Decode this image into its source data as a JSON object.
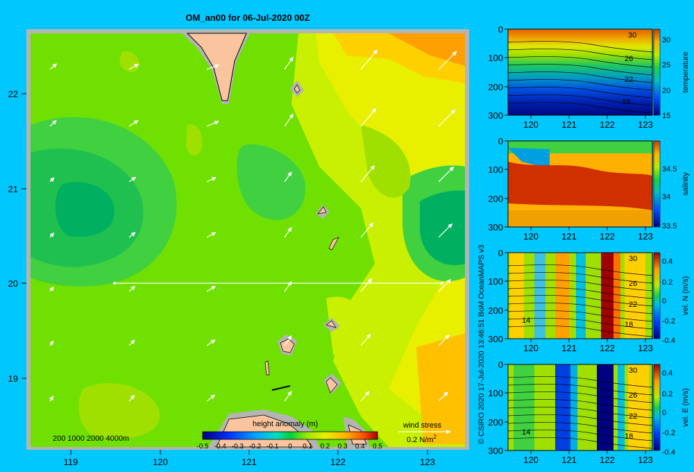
{
  "title": "OM_an00 for 06-Jul-2020 00Z",
  "credit": "© CSIRO 2020   17-Jul-2020 13:46:51  BoM OceanMAPS v3",
  "map": {
    "lon_ticks": [
      "119",
      "120",
      "121",
      "122",
      "123"
    ],
    "lat_ticks": [
      "22",
      "21",
      "20",
      "19"
    ],
    "depth_legend": "200  1000  2000  4000m",
    "colorbar_label": "height anomaly (m)",
    "colorbar_ticks": [
      "-0.5",
      "-0.4",
      "-0.3",
      "-0.2",
      "-0.1",
      "0",
      "0.1",
      "0.2",
      "0.3",
      "0.4",
      "0.5"
    ],
    "wind_label": "wind stress",
    "wind_scale": "0.2 N/m",
    "wind_scale_sup": "2",
    "section_latitude": 20,
    "colors": {
      "land": "#f9c49e",
      "shelf": "#b4b4b4",
      "background": "#00c8ff"
    }
  },
  "panels": [
    {
      "label": "temperature",
      "depth_ticks": [
        "0",
        "100",
        "200",
        "300"
      ],
      "lon_ticks": [
        "120",
        "121",
        "122",
        "123"
      ],
      "cb_ticks": [
        "30",
        "25",
        "20",
        "15"
      ],
      "contour_labels": [
        "30",
        "26",
        "22",
        "18"
      ]
    },
    {
      "label": "salinity",
      "depth_ticks": [
        "0",
        "100",
        "200",
        "300"
      ],
      "lon_ticks": [
        "120",
        "121",
        "122",
        "123"
      ],
      "cb_ticks": [
        "34.5",
        "34",
        "33.5"
      ],
      "contour_labels": []
    },
    {
      "label": "vel. N (m/s)",
      "depth_ticks": [
        "0",
        "100",
        "200",
        "300"
      ],
      "lon_ticks": [
        "120",
        "121",
        "122",
        "123"
      ],
      "cb_ticks": [
        "0.4",
        "0.2",
        "0",
        "-0.2",
        "-0.4"
      ],
      "contour_labels": [
        "30",
        "26",
        "22",
        "14",
        "18"
      ]
    },
    {
      "label": "vel. E (m/s)",
      "depth_ticks": [
        "0",
        "100",
        "200",
        "300"
      ],
      "lon_ticks": [
        "120",
        "121",
        "122",
        "123"
      ],
      "cb_ticks": [
        "0.4",
        "0.2",
        "0",
        "-0.2",
        "-0.4"
      ],
      "contour_labels": [
        "30",
        "26",
        "22",
        "14",
        "18"
      ]
    }
  ]
}
